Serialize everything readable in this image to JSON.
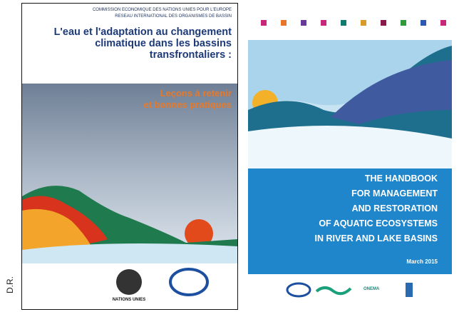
{
  "credit": "D.R.",
  "left_cover": {
    "org_lines": [
      "COMMISSION ECONOMIQUE DES NATIONS UNIES POUR L'EUROPE",
      "RESEAU INTERNATIONAL DES ORGANISMES DE BASSIN"
    ],
    "title_lines": [
      "L'eau et l'adaptation au changement",
      "climatique dans les bassins",
      "transfrontaliers :"
    ],
    "subtitle_lines": [
      "Leçons à retenir",
      "et bonnes pratiques"
    ],
    "logo_caption": "NATIONS UNIES"
  },
  "right_cover": {
    "title_lines": [
      "THE HANDBOOK",
      "FOR MANAGEMENT",
      "AND RESTORATION",
      "OF AQUATIC ECOSYSTEMS",
      "IN RIVER AND LAKE BASINS"
    ],
    "date": "March 2015",
    "partner": "ONEMA"
  }
}
